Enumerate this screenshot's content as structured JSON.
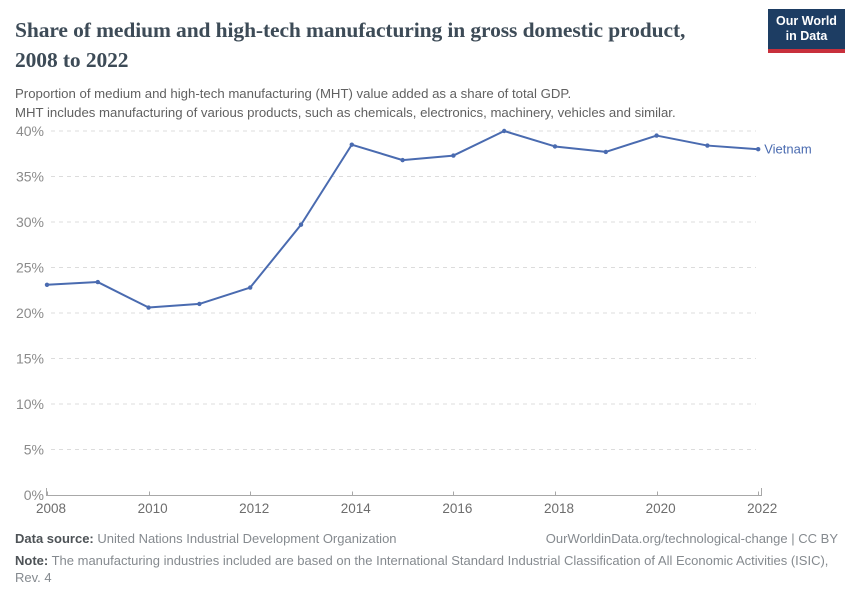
{
  "header": {
    "title": "Share of medium and high-tech manufacturing in gross domestic product, 2008 to 2022",
    "subtitle_lines": [
      "Proportion of medium and high-tech manufacturing (MHT) value added as a share of total GDP.",
      "MHT includes manufacturing of various products, such as chemicals, electronics, machinery, vehicles and similar."
    ],
    "logo": {
      "line1": "Our World",
      "line2": "in Data",
      "bg_color": "#1d3d63",
      "bar_color": "#c8303c"
    }
  },
  "chart_data": {
    "type": "line",
    "title": "Share of medium and high-tech manufacturing in gross domestic product, 2008 to 2022",
    "xlabel": "",
    "ylabel": "",
    "x": [
      2008,
      2009,
      2010,
      2011,
      2012,
      2013,
      2014,
      2015,
      2016,
      2017,
      2018,
      2019,
      2020,
      2021,
      2022
    ],
    "series": [
      {
        "name": "Vietnam",
        "color": "#4a6bb0",
        "values": [
          23.1,
          23.4,
          20.6,
          21.0,
          22.8,
          29.7,
          38.5,
          36.8,
          37.3,
          40.0,
          38.3,
          37.7,
          39.5,
          38.4,
          38.0
        ]
      }
    ],
    "ylim": [
      0,
      40
    ],
    "ytick_step": 5,
    "ytick_suffix": "%",
    "xticks": [
      2008,
      2010,
      2012,
      2014,
      2016,
      2018,
      2020,
      2022
    ],
    "grid": "dashed horizontal",
    "legend_position": "end-of-line",
    "colors": {
      "grid": "#dcdcdc",
      "axis": "#a8a8a8",
      "y_tick_label": "#8b8b8b",
      "x_tick_label": "#6d6d6d"
    }
  },
  "footer": {
    "data_source_label": "Data source:",
    "data_source_value": "United Nations Industrial Development Organization",
    "url_text": "OurWorldinData.org/technological-change",
    "separator": "|",
    "license": "CC BY",
    "note_label": "Note:",
    "note_value": "The manufacturing industries included are based on the International Standard Industrial Classification of All Economic Activities (ISIC), Rev. 4"
  }
}
